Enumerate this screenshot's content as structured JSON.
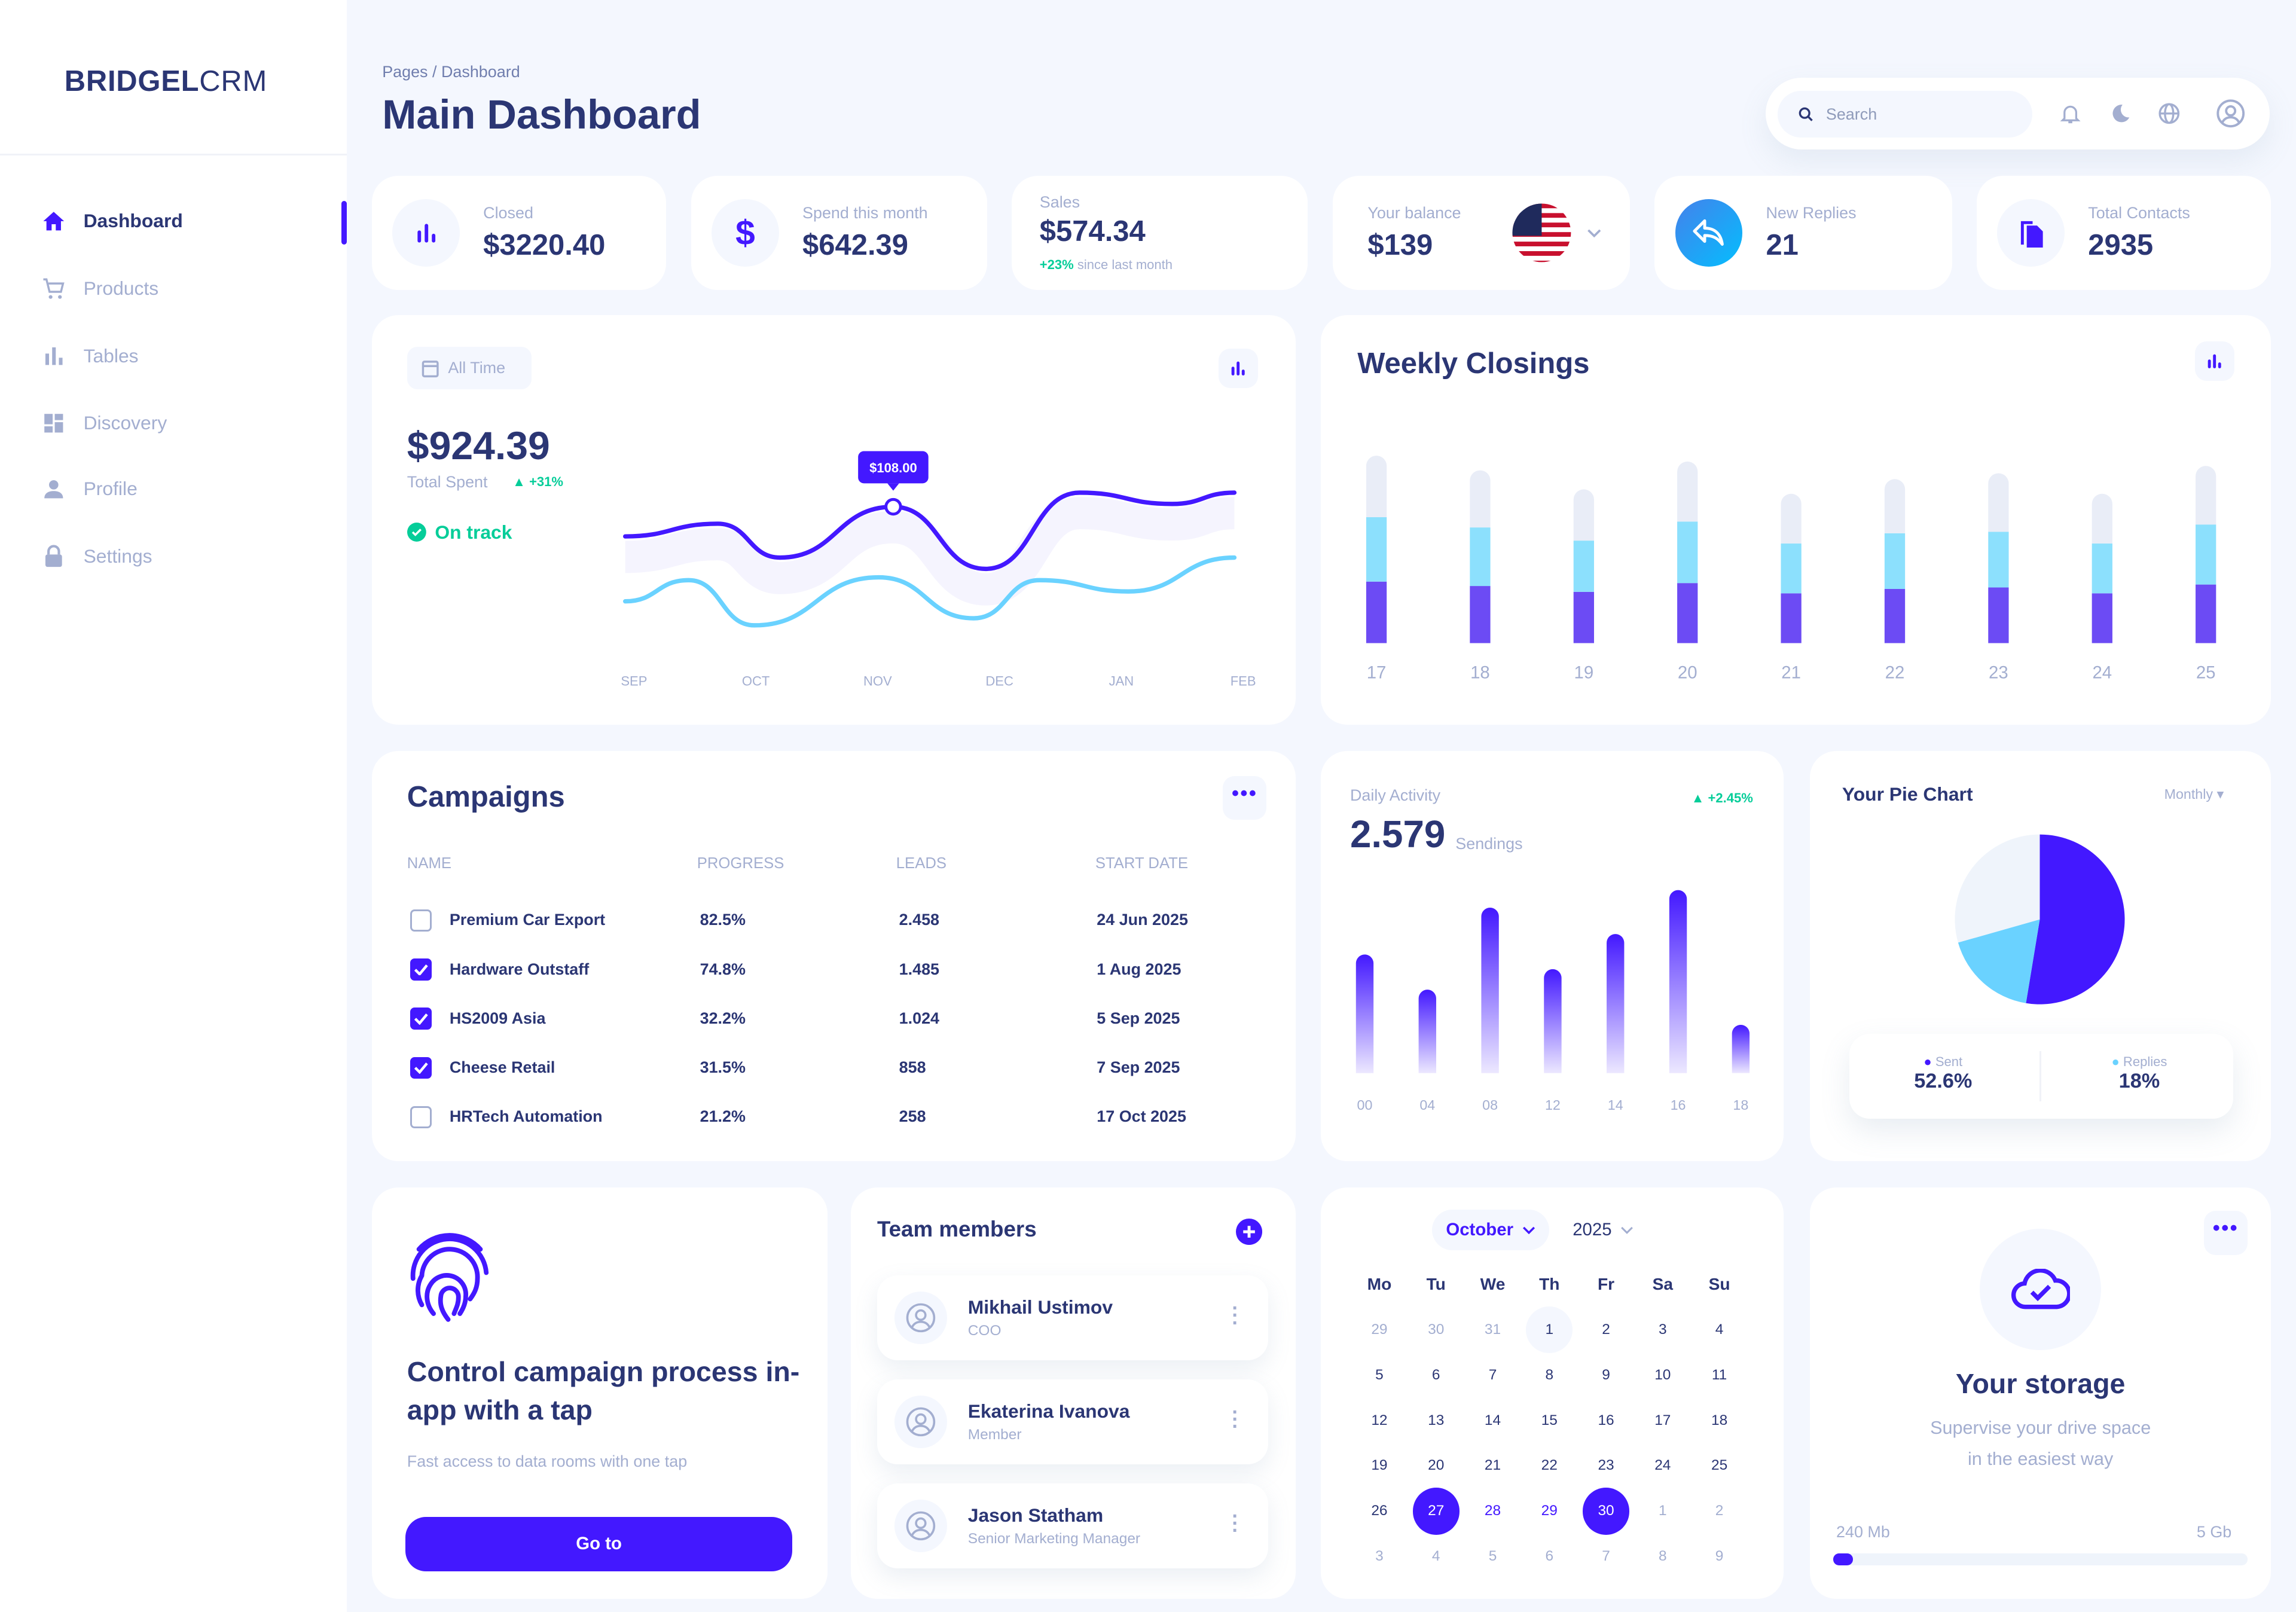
{
  "brand": {
    "bold": "BRIDGEL",
    "light": "CRM"
  },
  "colors": {
    "primary": "#4318ff",
    "cyan": "#6ad2ff",
    "navy": "#2b3674",
    "muted": "#a3aed0",
    "green": "#05cd99",
    "bg": "#f4f7fe",
    "light": "#e9edf7"
  },
  "sidebar": {
    "items": [
      {
        "label": "Dashboard",
        "icon": "home-icon",
        "active": true
      },
      {
        "label": "Products",
        "icon": "cart-icon"
      },
      {
        "label": "Tables",
        "icon": "bar-chart-icon"
      },
      {
        "label": "Discovery",
        "icon": "grid-icon"
      },
      {
        "label": "Profile",
        "icon": "person-icon"
      },
      {
        "label": "Settings",
        "icon": "lock-icon"
      }
    ]
  },
  "header": {
    "breadcrumb": "Pages / Dashboard",
    "title": "Main Dashboard",
    "search_placeholder": "Search"
  },
  "stats": [
    {
      "label": "Closed",
      "value": "$3220.40",
      "icon": "bar-chart-icon"
    },
    {
      "label": "Spend this month",
      "value": "$642.39",
      "icon": "dollar-icon"
    },
    {
      "label": "Sales",
      "value": "$574.34",
      "change": "+23%",
      "change_text": "since last month"
    },
    {
      "label": "Your balance",
      "value": "$139",
      "icon": "us-flag-icon"
    },
    {
      "label": "New Replies",
      "value": "21",
      "icon": "reply-icon"
    },
    {
      "label": "Total Contacts",
      "value": "2935",
      "icon": "file-icon"
    }
  ],
  "spent": {
    "filter": "All Time",
    "value": "$924.39",
    "label": "Total Spent",
    "change": "+31%",
    "status": "On track",
    "tooltip": "$108.00"
  },
  "chart_data": [
    {
      "type": "line",
      "categories": [
        "SEP",
        "OCT",
        "NOV",
        "DEC",
        "JAN",
        "FEB"
      ],
      "series": [
        {
          "color": "#4318ff",
          "points": [
            [
              0,
              87
            ],
            [
              0.76,
              96
            ],
            [
              1.27,
              72
            ],
            [
              2.2,
              108
            ],
            [
              2.96,
              64
            ],
            [
              3.73,
              118
            ],
            [
              4.49,
              110
            ],
            [
              5,
              118
            ]
          ]
        },
        {
          "color": "#6ad2ff",
          "points": [
            [
              0,
              41
            ],
            [
              0.52,
              56
            ],
            [
              1.06,
              24
            ],
            [
              2.08,
              58
            ],
            [
              2.86,
              29
            ],
            [
              3.4,
              56
            ],
            [
              4.13,
              48
            ],
            [
              5,
              72
            ]
          ]
        }
      ],
      "highlight": {
        "x": 2.2,
        "label": "$108.00"
      },
      "grid": false
    },
    {
      "type": "bar",
      "stacked": true,
      "title": "Weekly Closings",
      "categories": [
        "17",
        "18",
        "19",
        "20",
        "21",
        "22",
        "23",
        "24",
        "25"
      ],
      "series": [
        {
          "color": "#6c4bf4",
          "values": [
            42,
            39,
            35,
            41,
            34,
            37,
            38,
            34,
            40
          ]
        },
        {
          "color": "#8ce0fd",
          "values": [
            44,
            40,
            35,
            42,
            34,
            38,
            38,
            34,
            41
          ]
        },
        {
          "color": "#e9edf7",
          "values": [
            42,
            39,
            35,
            41,
            34,
            37,
            40,
            34,
            40
          ]
        }
      ],
      "grid": false
    },
    {
      "type": "bar",
      "title": "Daily Activity",
      "categories": [
        "00",
        "04",
        "08",
        "12",
        "14",
        "16",
        "18"
      ],
      "values": [
        81,
        57,
        113,
        71,
        95,
        125,
        33
      ],
      "grid": false
    },
    {
      "type": "pie",
      "title": "Your Pie Chart",
      "slices": [
        {
          "name": "Sent",
          "value": 52.6,
          "color": "#4318ff"
        },
        {
          "name": "Replies",
          "value": 18,
          "color": "#6ad2ff"
        },
        {
          "name": "",
          "value": 29.4,
          "color": "#eff4fb"
        }
      ]
    }
  ],
  "weekly": {
    "title": "Weekly Closings"
  },
  "campaigns": {
    "title": "Campaigns",
    "columns": [
      "NAME",
      "PROGRESS",
      "LEADS",
      "START DATE"
    ],
    "rows": [
      {
        "checked": false,
        "name": "Premium Car Export",
        "progress": "82.5%",
        "leads": "2.458",
        "date": "24 Jun 2025"
      },
      {
        "checked": true,
        "name": "Hardware Outstaff",
        "progress": "74.8%",
        "leads": "1.485",
        "date": "1 Aug 2025"
      },
      {
        "checked": true,
        "name": "HS2009 Asia",
        "progress": "32.2%",
        "leads": "1.024",
        "date": "5 Sep 2025"
      },
      {
        "checked": true,
        "name": "Cheese Retail",
        "progress": "31.5%",
        "leads": "858",
        "date": "7 Sep 2025"
      },
      {
        "checked": false,
        "name": "HRTech Automation",
        "progress": "21.2%",
        "leads": "258",
        "date": "17 Oct 2025"
      }
    ]
  },
  "daily": {
    "label": "Daily Activity",
    "value": "2.579",
    "unit": "Sendings",
    "change": "+2.45%"
  },
  "pie": {
    "title": "Your Pie Chart",
    "period": "Monthly",
    "sent_label": "Sent",
    "sent": "52.6%",
    "replies_label": "Replies",
    "replies": "18%"
  },
  "promo": {
    "title": "Control campaign process in-app with a tap",
    "subtitle": "Fast access to data rooms with one tap",
    "button": "Go to"
  },
  "team": {
    "title": "Team members",
    "members": [
      {
        "name": "Mikhail Ustimov",
        "role": "COO"
      },
      {
        "name": "Ekaterina Ivanova",
        "role": "Member"
      },
      {
        "name": "Jason Statham",
        "role": "Senior Marketing Manager"
      }
    ]
  },
  "calendar": {
    "month": "October",
    "year": "2025",
    "weekdays": [
      "Mo",
      "Tu",
      "We",
      "Th",
      "Fr",
      "Sa",
      "Su"
    ],
    "days": [
      [
        "29",
        "m"
      ],
      [
        "30",
        "m"
      ],
      [
        "31",
        "m"
      ],
      [
        "1",
        "t"
      ],
      [
        "2",
        ""
      ],
      [
        "3",
        ""
      ],
      [
        "4",
        ""
      ],
      [
        "5",
        ""
      ],
      [
        "6",
        ""
      ],
      [
        "7",
        ""
      ],
      [
        "8",
        ""
      ],
      [
        "9",
        ""
      ],
      [
        "10",
        ""
      ],
      [
        "11",
        ""
      ],
      [
        "12",
        ""
      ],
      [
        "13",
        ""
      ],
      [
        "14",
        ""
      ],
      [
        "15",
        ""
      ],
      [
        "16",
        ""
      ],
      [
        "17",
        ""
      ],
      [
        "18",
        ""
      ],
      [
        "19",
        ""
      ],
      [
        "20",
        ""
      ],
      [
        "21",
        ""
      ],
      [
        "22",
        ""
      ],
      [
        "23",
        ""
      ],
      [
        "24",
        ""
      ],
      [
        "25",
        ""
      ],
      [
        "26",
        ""
      ],
      [
        "27",
        "s"
      ],
      [
        "28",
        "r"
      ],
      [
        "29",
        "r"
      ],
      [
        "30",
        "s"
      ],
      [
        "1",
        "m"
      ],
      [
        "2",
        "m"
      ],
      [
        "3",
        "m"
      ],
      [
        "4",
        "m"
      ],
      [
        "5",
        "m"
      ],
      [
        "6",
        "m"
      ],
      [
        "7",
        "m"
      ],
      [
        "8",
        "m"
      ],
      [
        "9",
        "m"
      ]
    ]
  },
  "storage": {
    "title": "Your storage",
    "subtitle1": "Supervise your drive space",
    "subtitle2": "in the easiest way",
    "used": "240 Mb",
    "total": "5 Gb",
    "fraction": 0.047
  }
}
